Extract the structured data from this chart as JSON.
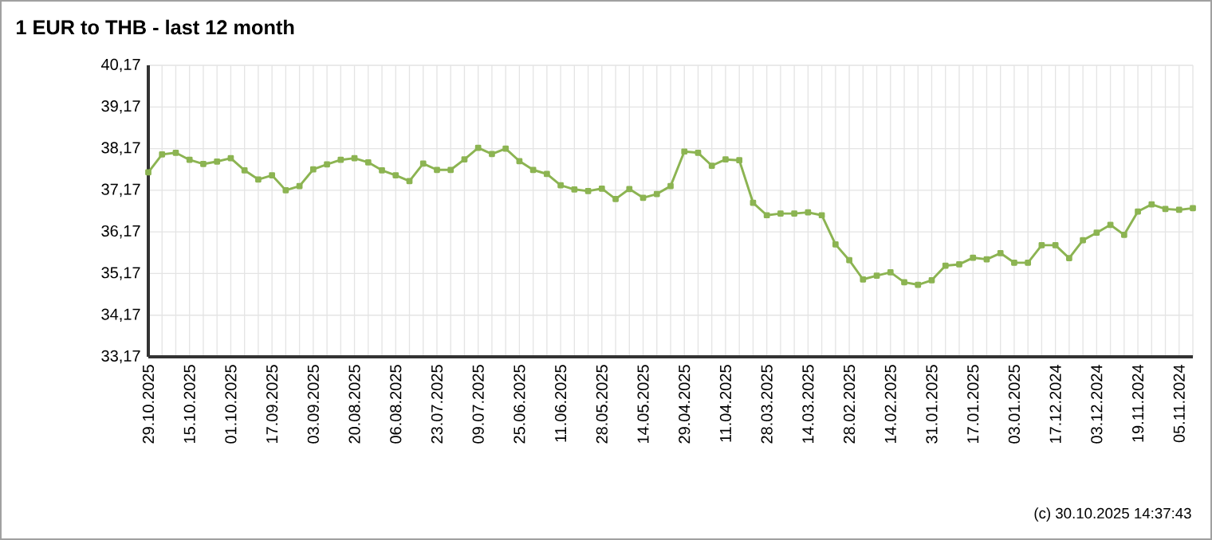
{
  "chart_data": {
    "type": "line",
    "title": "1 EUR to THB - last 12 month",
    "categories": [
      "29.10.2025",
      null,
      null,
      "15.10.2025",
      null,
      null,
      "01.10.2025",
      null,
      null,
      "17.09.2025",
      null,
      null,
      "03.09.2025",
      null,
      null,
      "20.08.2025",
      null,
      null,
      "06.08.2025",
      null,
      null,
      "23.07.2025",
      null,
      null,
      "09.07.2025",
      null,
      null,
      "25.06.2025",
      null,
      null,
      "11.06.2025",
      null,
      null,
      "28.05.2025",
      null,
      null,
      "14.05.2025",
      null,
      null,
      "29.04.2025",
      null,
      null,
      "11.04.2025",
      null,
      null,
      "28.03.2025",
      null,
      null,
      "14.03.2025",
      null,
      null,
      "28.02.2025",
      null,
      null,
      "14.02.2025",
      null,
      null,
      "31.01.2025",
      null,
      null,
      "17.01.2025",
      null,
      null,
      "03.01.2025",
      null,
      null,
      "17.12.2024",
      null,
      null,
      "03.12.2024",
      null,
      null,
      "19.11.2024",
      null,
      null,
      "05.11.2024",
      null
    ],
    "values": [
      37.6,
      38.03,
      38.07,
      37.9,
      37.8,
      37.86,
      37.94,
      37.65,
      37.43,
      37.53,
      37.17,
      37.27,
      37.67,
      37.79,
      37.9,
      37.94,
      37.84,
      37.65,
      37.53,
      37.39,
      37.81,
      37.66,
      37.66,
      37.91,
      38.19,
      38.04,
      38.17,
      37.87,
      37.66,
      37.56,
      37.29,
      37.19,
      37.15,
      37.21,
      36.96,
      37.2,
      36.99,
      37.08,
      37.27,
      38.1,
      38.07,
      37.76,
      37.91,
      37.89,
      36.87,
      36.57,
      36.61,
      36.61,
      36.64,
      36.57,
      35.87,
      35.49,
      35.03,
      35.12,
      35.2,
      34.96,
      34.9,
      35.01,
      35.36,
      35.39,
      35.55,
      35.51,
      35.66,
      35.43,
      35.43,
      35.85,
      35.85,
      35.54,
      35.97,
      36.15,
      36.34,
      36.1,
      36.66,
      36.83,
      36.72,
      36.7,
      36.74
    ],
    "color": "#8cb452",
    "marker": "square",
    "line_style": "solid",
    "grid": true,
    "ylim": [
      33.17,
      40.17
    ],
    "yticks": [
      {
        "value": 33.17,
        "label": "33,17"
      },
      {
        "value": 34.17,
        "label": "34,17"
      },
      {
        "value": 35.17,
        "label": "35,17"
      },
      {
        "value": 36.17,
        "label": "36,17"
      },
      {
        "value": 37.17,
        "label": "37,17"
      },
      {
        "value": 38.17,
        "label": "38,17"
      },
      {
        "value": 39.17,
        "label": "39,17"
      },
      {
        "value": 40.17,
        "label": "40,17"
      }
    ],
    "annotations": [
      "(c) 30.10.2025 14:37:43"
    ]
  }
}
